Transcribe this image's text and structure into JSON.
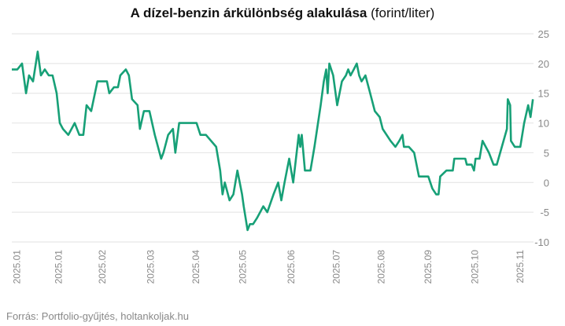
{
  "chart_data": {
    "type": "line",
    "title": "A dízel-benzin árkülönbség alakulása",
    "subtitle": "(forint/liter)",
    "source": "Forrás: Portfolio-gyűjtés, holtankoljak.hu",
    "x": [
      0,
      3.3,
      6.1,
      8.5,
      10.3,
      12.7,
      15.5,
      17.4,
      19.7,
      22.1,
      24.4,
      26.8,
      28.7,
      30.6,
      33.8,
      37.6,
      40.4,
      42.8,
      44.7,
      47.5,
      51.2,
      56.9,
      58.3,
      61.1,
      63.5,
      64.9,
      68.2,
      70,
      71.9,
      75.2,
      76.6,
      79,
      82.3,
      85.5,
      89.3,
      90.7,
      93.5,
      96.4,
      97.8,
      100.1,
      110.5,
      112.8,
      116.1,
      122.2,
      124.6,
      126,
      127.4,
      130.2,
      132.5,
      134.9,
      137.7,
      138.7,
      141,
      142.4,
      144.3,
      146.6,
      150.4,
      152.8,
      156.5,
      159.3,
      161.2,
      163.1,
      165.9,
      168.3,
      171.6,
      172.5,
      173.4,
      175.3,
      178.6,
      181,
      184.7,
      186.6,
      188,
      188.9,
      189.9,
      192.2,
      194.6,
      197.4,
      199.8,
      201.2,
      202.6,
      204.5,
      206.3,
      207.7,
      209.2,
      211.5,
      214.3,
      217.1,
      220,
      221.8,
      226.5,
      229.4,
      231.7,
      233.6,
      234.5,
      237.4,
      240.6,
      243.5,
      249.1,
      251.5,
      253.8,
      255.2,
      256.2,
      259.9,
      263.7,
      264.6,
      271.2,
      272.1,
      275,
      276.4,
      277.3,
      279.7,
      281.5,
      285.3,
      288.1,
      290,
      296.1,
      296.6,
      298,
      298.5,
      300.8,
      304.1,
      306.4,
      308.8,
      310.2,
      311.6
    ],
    "series": [
      {
        "color": "#17a077",
        "values": [
          19,
          19,
          20,
          15,
          18,
          17,
          22,
          18,
          19,
          18,
          18,
          15,
          10,
          9,
          8,
          10,
          8,
          8,
          13,
          12,
          17,
          17,
          15,
          16,
          16,
          18,
          19,
          18,
          14,
          13,
          9,
          12,
          12,
          8,
          4,
          5,
          8,
          9,
          5,
          10,
          10,
          8,
          8,
          6,
          2,
          -2,
          0,
          -3,
          -2,
          2,
          -2,
          -4,
          -8,
          -7,
          -7,
          -6,
          -4,
          -5,
          -2,
          0,
          -3,
          0,
          4,
          0,
          8,
          6,
          8,
          2,
          2,
          6,
          13,
          17,
          19,
          15,
          20,
          18,
          13,
          17,
          18,
          19,
          18,
          19,
          20,
          18,
          17,
          18,
          15,
          12,
          11,
          9,
          7,
          6,
          7,
          8,
          6,
          6,
          5,
          1,
          1,
          -1,
          -2,
          -2,
          1,
          2,
          2,
          4,
          4,
          3,
          3,
          2,
          4,
          4,
          7,
          5,
          3,
          3,
          9,
          14,
          13,
          7,
          6,
          6,
          10,
          13,
          11,
          14
        ]
      }
    ],
    "xlim": [
      0,
      312
    ],
    "xticks": [
      {
        "value": 3,
        "label": "2025.01"
      },
      {
        "value": 28,
        "label": "2025.01"
      },
      {
        "value": 54,
        "label": "2025.02"
      },
      {
        "value": 83,
        "label": "2025.03"
      },
      {
        "value": 110,
        "label": "2025.04"
      },
      {
        "value": 138,
        "label": "2025.05"
      },
      {
        "value": 167,
        "label": "2025.06"
      },
      {
        "value": 194,
        "label": "2025.07"
      },
      {
        "value": 221,
        "label": "2025.08"
      },
      {
        "value": 249,
        "label": "2025.09"
      },
      {
        "value": 277,
        "label": "2025.10"
      },
      {
        "value": 304,
        "label": "2025.11"
      }
    ],
    "ylim": [
      -10,
      25
    ],
    "yticks": [
      -10,
      -5,
      0,
      5,
      10,
      15,
      20,
      25
    ],
    "grid": true
  }
}
